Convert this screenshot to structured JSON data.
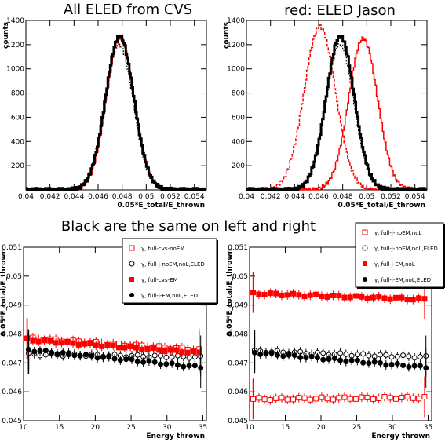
{
  "page_title": "Black are the same on left and right",
  "chart_data": [
    {
      "id": "top-left",
      "type": "line",
      "title": "All ELED from CVS",
      "xlabel": "0.05*E_total/E_thrown",
      "ylabel": "counts",
      "xlim": [
        0.04,
        0.055
      ],
      "ylim": [
        0,
        1400
      ],
      "xticks": [
        0.04,
        0.042,
        0.044,
        0.046,
        0.048,
        0.05,
        0.052,
        0.054
      ],
      "yticks": [
        200,
        400,
        600,
        800,
        1000,
        1200,
        1400
      ],
      "series": [
        {
          "color": "#ff0000",
          "style": "solid",
          "width": 1.2,
          "mean": 0.04785,
          "sigma": 0.00115,
          "peak": 1250
        },
        {
          "color": "#000000",
          "style": "dotted",
          "width": 1.2,
          "mean": 0.04775,
          "sigma": 0.00118,
          "peak": 1200
        },
        {
          "color": "#000000",
          "style": "solid",
          "width": 3,
          "mean": 0.0478,
          "sigma": 0.00117,
          "peak": 1270
        }
      ]
    },
    {
      "id": "top-right",
      "type": "line",
      "title": "red: ELED Jason",
      "xlabel": "0.05*E_total/E_thrown",
      "ylabel": "counts",
      "xlim": [
        0.04,
        0.055
      ],
      "ylim": [
        0,
        1400
      ],
      "xticks": [
        0.04,
        0.042,
        0.044,
        0.046,
        0.048,
        0.05,
        0.052,
        0.054
      ],
      "yticks": [
        200,
        400,
        600,
        800,
        1000,
        1200,
        1400
      ],
      "series": [
        {
          "color": "#ff0000",
          "style": "dashed",
          "width": 1.5,
          "mean": 0.0461,
          "sigma": 0.0013,
          "peak": 1350
        },
        {
          "color": "#ff0000",
          "style": "solid",
          "width": 1.5,
          "mean": 0.0497,
          "sigma": 0.0012,
          "peak": 1250
        },
        {
          "color": "#000000",
          "style": "dotted",
          "width": 1.2,
          "mean": 0.04775,
          "sigma": 0.00118,
          "peak": 1200
        },
        {
          "color": "#000000",
          "style": "solid",
          "width": 3,
          "mean": 0.0478,
          "sigma": 0.00117,
          "peak": 1270
        }
      ]
    },
    {
      "id": "bottom-left",
      "type": "scatter",
      "xlabel": "Energy thrown",
      "ylabel": "0.05*E_total/E_thrown",
      "xlim": [
        10,
        35.5
      ],
      "ylim": [
        0.045,
        0.051
      ],
      "xticks": [
        10,
        15,
        20,
        25,
        30,
        35
      ],
      "yticks": [
        0.045,
        0.046,
        0.047,
        0.048,
        0.049,
        0.05,
        0.051
      ],
      "legend": [
        {
          "label": "γ, full-cvs-noEM",
          "marker": "open-square",
          "color": "#ff0000"
        },
        {
          "label": "γ, full-j-noEM,noL,ELED",
          "marker": "open-circle",
          "color": "#000000"
        },
        {
          "label": "γ, full-cvs-EM",
          "marker": "filled-square",
          "color": "#ff0000"
        },
        {
          "label": "γ, full-j-EM,noL,ELED",
          "marker": "filled-circle",
          "color": "#000000"
        }
      ],
      "series": [
        {
          "marker": "open-square",
          "color": "#ff0000",
          "start": 0.04785,
          "end": 0.04745
        },
        {
          "marker": "open-circle",
          "color": "#000000",
          "start": 0.0473,
          "end": 0.0472
        },
        {
          "marker": "filled-square",
          "color": "#ff0000",
          "start": 0.0478,
          "end": 0.04735
        },
        {
          "marker": "filled-circle",
          "color": "#000000",
          "start": 0.04745,
          "end": 0.04685
        }
      ]
    },
    {
      "id": "bottom-right",
      "type": "scatter",
      "xlabel": "Energy thrown",
      "ylabel": "0.05*E_total/E_thrown",
      "xlim": [
        10,
        35.5
      ],
      "ylim": [
        0.045,
        0.051
      ],
      "xticks": [
        10,
        15,
        20,
        25,
        30,
        35
      ],
      "yticks": [
        0.045,
        0.046,
        0.047,
        0.048,
        0.049,
        0.05,
        0.051
      ],
      "legend": [
        {
          "label": "γ, full-j-noEM,noL",
          "marker": "open-square",
          "color": "#ff0000"
        },
        {
          "label": "γ, full-j-noEM,noL,ELED",
          "marker": "open-circle",
          "color": "#000000"
        },
        {
          "label": "γ, full-j-EM,noL",
          "marker": "filled-square",
          "color": "#ff0000"
        },
        {
          "label": "γ, full-j-EM,noL,ELED",
          "marker": "filled-circle",
          "color": "#000000"
        }
      ],
      "series": [
        {
          "marker": "open-square",
          "color": "#ff0000",
          "start": 0.04575,
          "end": 0.0458
        },
        {
          "marker": "open-circle",
          "color": "#000000",
          "start": 0.0474,
          "end": 0.0472
        },
        {
          "marker": "filled-square",
          "color": "#ff0000",
          "start": 0.0494,
          "end": 0.0492
        },
        {
          "marker": "filled-circle",
          "color": "#000000",
          "start": 0.04735,
          "end": 0.04685
        }
      ]
    }
  ]
}
